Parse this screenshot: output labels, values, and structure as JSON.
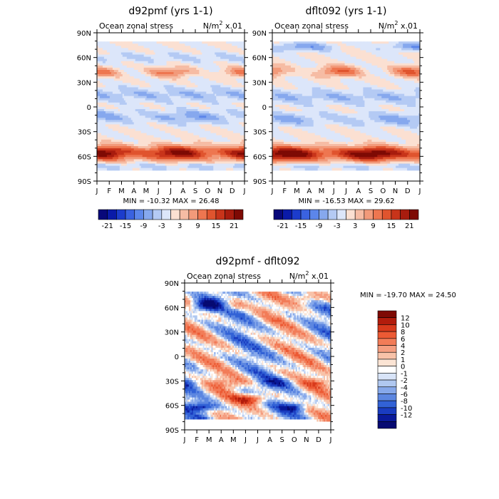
{
  "chart_data": [
    {
      "type": "heatmap",
      "title": "d92pmf (yrs 1-1)",
      "subtitle": "Ocean zonal stress",
      "units_base": "N/m",
      "units_sup": "2",
      "units_scale": "x.01",
      "x_ticks": [
        "J",
        "F",
        "M",
        "A",
        "M",
        "J",
        "J",
        "A",
        "S",
        "O",
        "N",
        "D",
        "J"
      ],
      "y_ticks": [
        "90N",
        "60N",
        "30N",
        "0",
        "30S",
        "60S",
        "90S"
      ],
      "y_values": [
        90,
        60,
        30,
        0,
        -30,
        -60,
        -90
      ],
      "min_label": "MIN =",
      "min": "-10.32",
      "max_label": "MAX =",
      "max": "26.48",
      "colorbar_labels": [
        "-21",
        "-15",
        "-9",
        "-3",
        "3",
        "9",
        "15",
        "21"
      ]
    },
    {
      "type": "heatmap",
      "title": "dflt092 (yrs 1-1)",
      "subtitle": "Ocean zonal stress",
      "units_base": "N/m",
      "units_sup": "2",
      "units_scale": "x.01",
      "x_ticks": [
        "J",
        "F",
        "M",
        "A",
        "M",
        "J",
        "J",
        "A",
        "S",
        "O",
        "N",
        "D",
        "J"
      ],
      "y_ticks": [
        "90N",
        "60N",
        "30N",
        "0",
        "30S",
        "60S",
        "90S"
      ],
      "y_values": [
        90,
        60,
        30,
        0,
        -30,
        -60,
        -90
      ],
      "min_label": "MIN =",
      "min": "-16.53",
      "max_label": "MAX =",
      "max": "29.62",
      "colorbar_labels": [
        "-21",
        "-15",
        "-9",
        "-3",
        "3",
        "9",
        "15",
        "21"
      ]
    },
    {
      "type": "heatmap",
      "title": "d92pmf - dflt092",
      "subtitle": "Ocean zonal stress",
      "units_base": "N/m",
      "units_sup": "2",
      "units_scale": "x.01",
      "x_ticks": [
        "J",
        "F",
        "M",
        "A",
        "M",
        "J",
        "J",
        "A",
        "S",
        "O",
        "N",
        "D",
        "J"
      ],
      "y_ticks": [
        "90N",
        "60N",
        "30N",
        "0",
        "30S",
        "60S",
        "90S"
      ],
      "y_values": [
        90,
        60,
        30,
        0,
        -30,
        -60,
        -90
      ],
      "min_label": "MIN =",
      "min": "-19.70",
      "max_label": "MAX =",
      "max": "24.50",
      "colorbar_labels": [
        "12",
        "10",
        "8",
        "6",
        "4",
        "2",
        "1",
        "0",
        "-1",
        "-2",
        "-4",
        "-6",
        "-8",
        "-10",
        "-12"
      ]
    }
  ],
  "colors": {
    "top_palette": [
      "#08087a",
      "#0a1aa8",
      "#1c3ccc",
      "#3a62e0",
      "#5c86ea",
      "#86a8ee",
      "#b4caf4",
      "#dce6fa",
      "#fbe0d2",
      "#f6bca4",
      "#f29a7a",
      "#ee7650",
      "#e0542e",
      "#c8341a",
      "#a81c0e",
      "#7e0a04"
    ],
    "diff_palette_top_to_bottom": [
      "#7e0a04",
      "#b21c0c",
      "#d83a1c",
      "#ec5a34",
      "#f27c58",
      "#f59e80",
      "#f8c2a8",
      "#fbe4d4",
      "#ffffff",
      "#d8e4f8",
      "#b0c8f0",
      "#86a8ea",
      "#5c86e0",
      "#3262d6",
      "#1a3cc0",
      "#0a1a9a",
      "#060a72"
    ]
  }
}
